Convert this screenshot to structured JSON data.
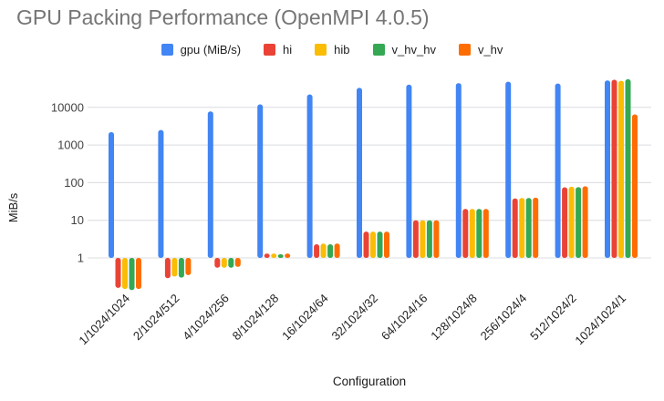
{
  "chart_data": {
    "type": "bar",
    "title": "GPU Packing Performance (OpenMPI 4.0.5)",
    "xlabel": "Configuration",
    "ylabel": "MiB/s",
    "y_scale": "log",
    "ylim": [
      0.1,
      60000
    ],
    "grid": "horizontal-only",
    "legend_position": "top",
    "y_ticks": [
      {
        "v": 1,
        "label": "1"
      },
      {
        "v": 10,
        "label": "10"
      },
      {
        "v": 100,
        "label": "100"
      },
      {
        "v": 1000,
        "label": "1000"
      },
      {
        "v": 10000,
        "label": "10000"
      }
    ],
    "categories": [
      "1/1024/1024",
      "2/1024/512",
      "4/1024/256",
      "8/1024/128",
      "16/1024/64",
      "32/1024/32",
      "64/1024/16",
      "128/1024/8",
      "256/1024/4",
      "512/1024/2",
      "1024/1024/1"
    ],
    "series": [
      {
        "name": "gpu (MiB/s)",
        "color": "#4285F4",
        "values": [
          2200,
          2500,
          7800,
          12000,
          22000,
          33000,
          40000,
          44000,
          48000,
          43000,
          52000
        ]
      },
      {
        "name": "hi",
        "color": "#EA4335",
        "values": [
          0.16,
          0.29,
          0.55,
          1.3,
          2.3,
          5,
          10,
          20,
          38,
          75,
          54000
        ]
      },
      {
        "name": "hib",
        "color": "#FBBC04",
        "values": [
          0.15,
          0.32,
          0.55,
          1.3,
          2.4,
          5,
          10,
          20,
          39,
          78,
          51000
        ]
      },
      {
        "name": "v_hv_hv",
        "color": "#34A853",
        "values": [
          0.14,
          0.3,
          0.55,
          1.25,
          2.3,
          5,
          10,
          20,
          39,
          76,
          56000
        ]
      },
      {
        "name": "v_hv",
        "color": "#FF6D01",
        "values": [
          0.15,
          0.35,
          0.58,
          1.3,
          2.4,
          5,
          10,
          20,
          40,
          80,
          6500
        ]
      }
    ]
  }
}
